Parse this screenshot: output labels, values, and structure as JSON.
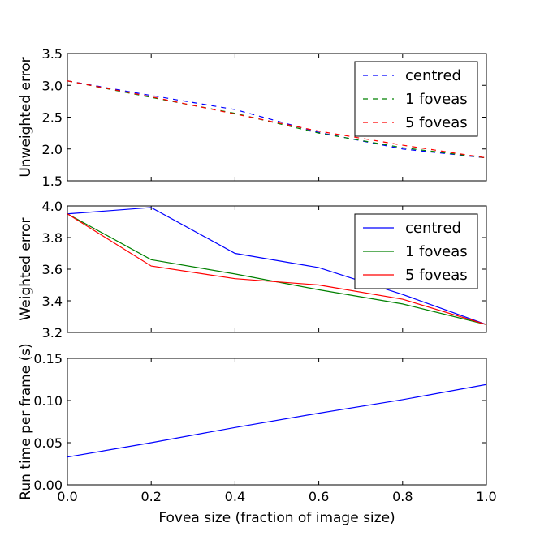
{
  "chart_data": [
    {
      "type": "line",
      "xlabel": "",
      "ylabel": "Unweighted error",
      "xlim": [
        0.0,
        1.0
      ],
      "ylim": [
        1.5,
        3.5
      ],
      "yticks": [
        "1.5",
        "2.0",
        "2.5",
        "3.0",
        "3.5"
      ],
      "grid": false,
      "legend_position": "top-right",
      "line_style": "dashed",
      "x": [
        0.0,
        0.2,
        0.4,
        0.6,
        0.8,
        1.0
      ],
      "series": [
        {
          "name": "centred",
          "color": "#0000ff",
          "values": [
            3.07,
            2.84,
            2.62,
            2.26,
            2.0,
            1.86
          ]
        },
        {
          "name": "1 foveas",
          "color": "#008000",
          "values": [
            3.07,
            2.81,
            2.56,
            2.25,
            2.02,
            1.86
          ]
        },
        {
          "name": "5 foveas",
          "color": "#ff0000",
          "values": [
            3.07,
            2.82,
            2.55,
            2.28,
            2.06,
            1.86
          ]
        }
      ]
    },
    {
      "type": "line",
      "xlabel": "",
      "ylabel": "Weighted error",
      "xlim": [
        0.0,
        1.0
      ],
      "ylim": [
        3.2,
        4.0
      ],
      "yticks": [
        "3.2",
        "3.4",
        "3.6",
        "3.8",
        "4.0"
      ],
      "grid": false,
      "legend_position": "top-right",
      "line_style": "solid",
      "x": [
        0.0,
        0.2,
        0.4,
        0.6,
        0.8,
        1.0
      ],
      "series": [
        {
          "name": "centred",
          "color": "#0000ff",
          "values": [
            3.95,
            3.99,
            3.7,
            3.61,
            3.44,
            3.25
          ]
        },
        {
          "name": "1 foveas",
          "color": "#008000",
          "values": [
            3.95,
            3.66,
            3.57,
            3.47,
            3.38,
            3.25
          ]
        },
        {
          "name": "5 foveas",
          "color": "#ff0000",
          "values": [
            3.95,
            3.62,
            3.54,
            3.5,
            3.41,
            3.25
          ]
        }
      ]
    },
    {
      "type": "line",
      "xlabel": "Fovea size (fraction of image size)",
      "ylabel": "Run time per frame (s)",
      "xlim": [
        0.0,
        1.0
      ],
      "ylim": [
        0.0,
        0.15
      ],
      "yticks": [
        "0.00",
        "0.05",
        "0.10",
        "0.15"
      ],
      "xticks": [
        "0.0",
        "0.2",
        "0.4",
        "0.6",
        "0.8",
        "1.0"
      ],
      "grid": false,
      "line_style": "solid",
      "x": [
        0.0,
        0.2,
        0.4,
        0.6,
        0.8,
        1.0
      ],
      "series": [
        {
          "color": "#0000ff",
          "values": [
            0.033,
            0.05,
            0.068,
            0.085,
            0.101,
            0.119
          ]
        }
      ]
    }
  ]
}
